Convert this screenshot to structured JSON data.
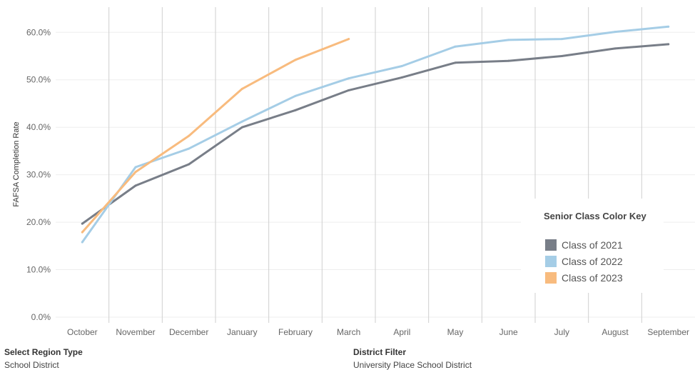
{
  "chart_data": {
    "type": "line",
    "title": "",
    "xlabel": "",
    "ylabel": "FAFSA Completion Rate",
    "categories": [
      "October",
      "November",
      "December",
      "January",
      "February",
      "March",
      "April",
      "May",
      "June",
      "July",
      "August",
      "September"
    ],
    "y_ticks": [
      "0.0%",
      "10.0%",
      "20.0%",
      "30.0%",
      "40.0%",
      "50.0%",
      "60.0%"
    ],
    "ylim": [
      0,
      0.62
    ],
    "grid": "vertical month dividers and light horizontal gridlines",
    "legend_position": "bottom-right",
    "legend_title": "Senior Class Color Key",
    "series": [
      {
        "name": "Class of 2021",
        "color": "#787e88",
        "values": [
          0.197,
          0.277,
          0.322,
          0.4,
          0.436,
          0.478,
          0.505,
          0.536,
          0.54,
          0.55,
          0.566,
          0.575
        ]
      },
      {
        "name": "Class of 2022",
        "color": "#a5cde6",
        "values": [
          0.158,
          0.316,
          0.355,
          0.412,
          0.466,
          0.503,
          0.529,
          0.57,
          0.584,
          0.586,
          0.601,
          0.612
        ]
      },
      {
        "name": "Class of 2023",
        "color": "#f8bb7e",
        "values": [
          0.179,
          0.306,
          0.382,
          0.481,
          0.542,
          0.586,
          null,
          null,
          null,
          null,
          null,
          null
        ]
      }
    ]
  },
  "filters": {
    "region_type": {
      "title": "Select Region Type",
      "value": "School District"
    },
    "district": {
      "title": "District Filter",
      "value": "University Place School District"
    }
  }
}
